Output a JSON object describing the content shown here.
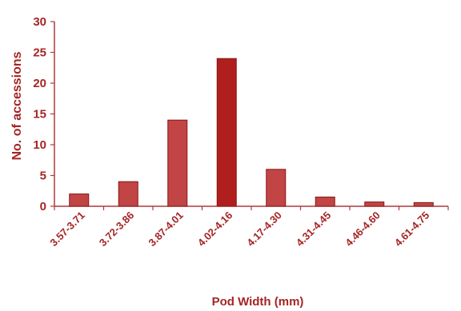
{
  "chart_data": {
    "type": "bar",
    "title": "",
    "xlabel": "Pod Width (mm)",
    "ylabel": "No. of accessions",
    "categories": [
      "3.57-3.71",
      "3.72-3.86",
      "3.87-4.01",
      "4.02-4.16",
      "4.17-4.30",
      "4.31-4.45",
      "4.46-4.60",
      "4.61-4.75"
    ],
    "values": [
      2,
      4,
      14,
      24,
      6,
      1.5,
      0.7,
      0.6
    ],
    "ylim": [
      0,
      30
    ],
    "yticks": [
      "0",
      "5",
      "10",
      "15",
      "20",
      "25",
      "30"
    ],
    "grid": false,
    "legend": "none",
    "colors": {
      "bar_fill": "#c14545",
      "bar_fill_peak": "#b01e1e",
      "bar_stroke": "#8a1515",
      "text": "#a52525",
      "axis": "#b03a3a"
    }
  }
}
